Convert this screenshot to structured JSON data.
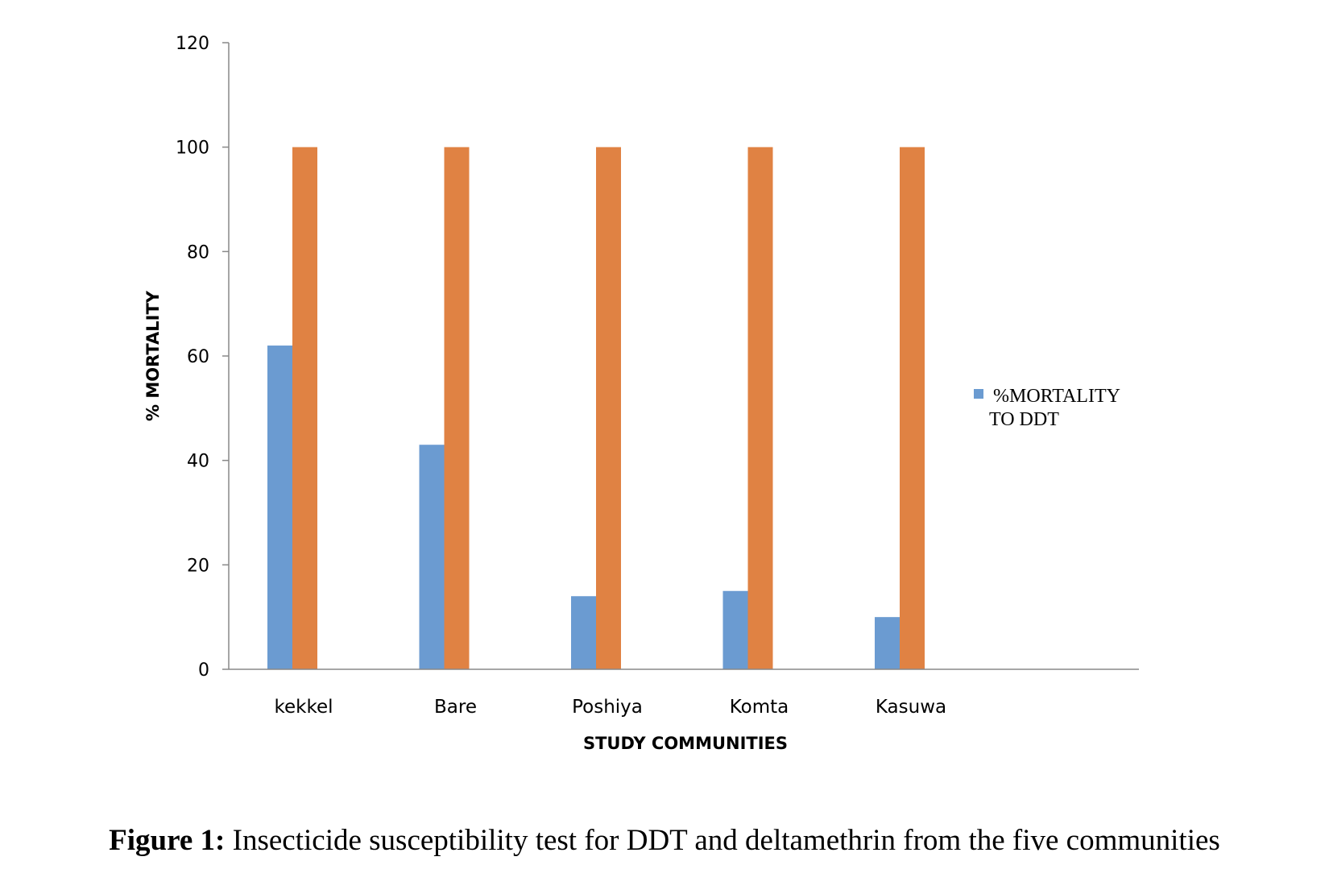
{
  "chart_data": {
    "type": "bar",
    "categories": [
      "kekkel",
      "Bare",
      "Poshiya",
      "Komta",
      "Kasuwa"
    ],
    "series": [
      {
        "name": "%MORTALITY TO DDT",
        "values": [
          62,
          43,
          14,
          15,
          10
        ],
        "color": "#6b9bd1"
      },
      {
        "values": [
          100,
          100,
          100,
          100,
          100
        ],
        "color": "#e08243"
      }
    ],
    "xlabel": "STUDY COMMUNITIES",
    "ylabel": "% MORTALITY",
    "ylim": [
      0,
      120
    ],
    "yticks": [
      0,
      20,
      40,
      60,
      80,
      100,
      120
    ],
    "legend_position": "right",
    "legend_lines": [
      "%MORTALITY",
      "TO DDT"
    ],
    "grid": false
  },
  "caption": {
    "label": "Figure 1:",
    "text": " Insecticide susceptibility test for DDT and deltamethrin from the five communities"
  }
}
